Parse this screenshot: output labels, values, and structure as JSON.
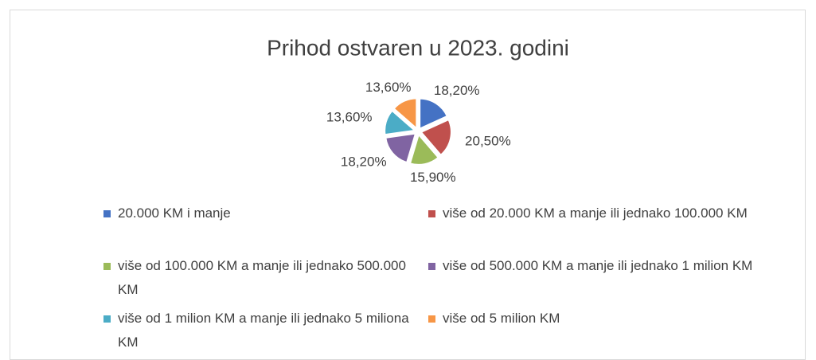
{
  "chart_data": {
    "type": "pie",
    "title": "Prihod ostvaren u 2023. godini",
    "categories": [
      "20.000 KM i manje",
      "više od 20.000 KM a manje ili jednako 100.000 KM",
      "više od 100.000 KM a manje ili jednako 500.000 KM",
      "više od 500.000 KM a manje ili jednako 1 milion KM",
      "više od 1 milion KM a manje ili jednako 5 miliona KM",
      "više od 5 milion KM"
    ],
    "values": [
      18.2,
      20.5,
      15.9,
      18.2,
      13.6,
      13.6
    ],
    "value_labels": [
      "18,20%",
      "20,50%",
      "15,90%",
      "18,20%",
      "13,60%",
      "13,60%"
    ],
    "colors": [
      "#4472c4",
      "#c0504d",
      "#9bbb59",
      "#8064a2",
      "#4bacc6",
      "#f79646"
    ],
    "legend": "bottom"
  }
}
